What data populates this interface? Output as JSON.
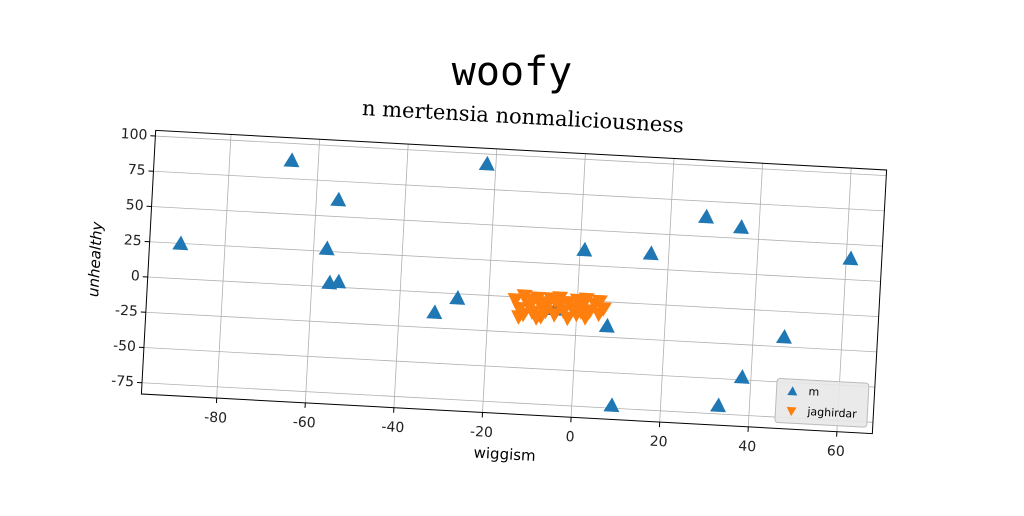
{
  "chart_data": {
    "type": "scatter",
    "title": "woofy",
    "subtitle": "n mertensia nonmaliciousness",
    "xlabel": "wiggism",
    "ylabel": "unhealthy",
    "xlim": [
      -97,
      68
    ],
    "ylim": [
      -83,
      104
    ],
    "xticks": [
      -80,
      -60,
      -40,
      -20,
      0,
      20,
      40,
      60
    ],
    "yticks": [
      -75,
      -50,
      -25,
      0,
      25,
      50,
      75,
      100
    ],
    "grid": true,
    "legend": "lower right",
    "series": [
      {
        "name": "m",
        "color": "#1f77b4",
        "marker": "triangle-up",
        "x": [
          -90,
          -66,
          -55,
          -57,
          -56,
          -54,
          -32,
          -27,
          -22,
          1,
          16,
          28,
          36,
          61,
          47,
          38,
          33,
          9,
          7,
          -5
        ],
        "values": [
          25,
          88,
          62,
          27,
          3,
          4,
          -14,
          -3,
          93,
          36,
          36,
          64,
          58,
          40,
          -18,
          -48,
          -69,
          -73,
          -17,
          -7
        ]
      },
      {
        "name": "jaghirdar",
        "color": "#ff7f0e",
        "marker": "triangle-down",
        "x": [
          -14,
          -13,
          -12,
          -12,
          -11,
          -10,
          -10,
          -9,
          -8,
          -8,
          -7,
          -7,
          -6,
          -5,
          -4,
          -4,
          -3,
          -2,
          -2,
          -1,
          0,
          0,
          1,
          2,
          2,
          3,
          4,
          5,
          5,
          6,
          -13,
          -9,
          -5,
          1
        ],
        "values": [
          -2,
          -8,
          1,
          -12,
          -5,
          -2,
          -10,
          0,
          -6,
          -13,
          -3,
          -9,
          0,
          -11,
          -4,
          1,
          -8,
          -2,
          -13,
          -6,
          0,
          -10,
          -4,
          1,
          -12,
          -7,
          -2,
          -9,
          0,
          -5,
          -14,
          -14,
          -1,
          -8
        ]
      }
    ]
  }
}
